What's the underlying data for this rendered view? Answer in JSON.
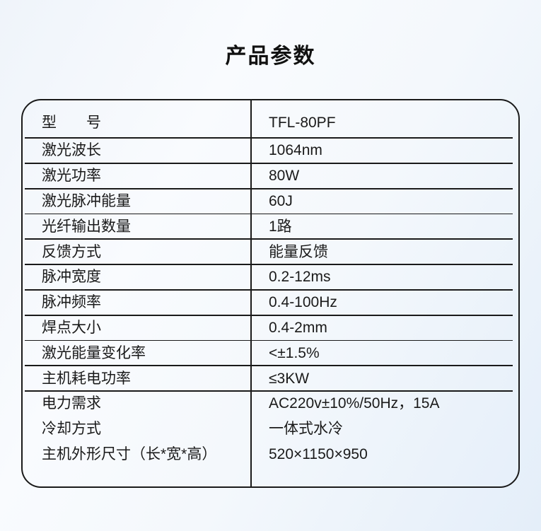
{
  "title": "产品参数",
  "table": {
    "rows": [
      {
        "label": "型　　号",
        "value": "TFL-80PF"
      },
      {
        "label": "激光波长",
        "value": "1064nm"
      },
      {
        "label": "激光功率",
        "value": "80W"
      },
      {
        "label": "激光脉冲能量",
        "value": "60J"
      },
      {
        "label": "光纤输出数量",
        "value": "1路"
      },
      {
        "label": "反馈方式",
        "value": "能量反馈"
      },
      {
        "label": "脉冲宽度",
        "value": "0.2-12ms"
      },
      {
        "label": "脉冲频率",
        "value": "0.4-100Hz"
      },
      {
        "label": "焊点大小",
        "value": "0.4-2mm"
      },
      {
        "label": "激光能量变化率",
        "value": "<±1.5%"
      },
      {
        "label": "主机耗电功率",
        "value": "≤3KW"
      },
      {
        "label": "电力需求",
        "value": "AC220v±10%/50Hz，15A"
      },
      {
        "label": "冷却方式",
        "value": "一体式水冷"
      },
      {
        "label": "主机外形尺寸（长*宽*高）",
        "value": "520×1150×950"
      }
    ]
  },
  "colors": {
    "line": "#1a1a1a",
    "text": "#1a1a1a",
    "background_top": "#f6f9fd",
    "background_bottom": "#e4eef9"
  }
}
